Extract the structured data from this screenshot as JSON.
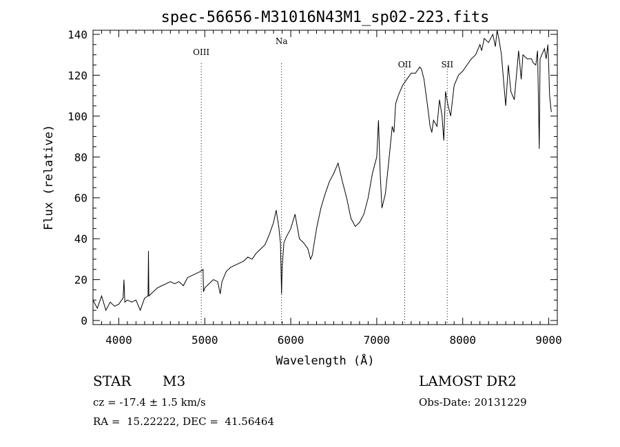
{
  "chart_data": {
    "type": "line",
    "title": "spec-56656-M31016N43M1_sp02-223.fits",
    "xlabel": "Wavelength (Å)",
    "ylabel": "Flux (relative)",
    "xlim": [
      3700,
      9100
    ],
    "ylim": [
      -2,
      142
    ],
    "xticks": [
      4000,
      5000,
      6000,
      7000,
      8000,
      9000
    ],
    "yticks": [
      0,
      20,
      40,
      60,
      80,
      100,
      120,
      140
    ],
    "grid": false,
    "line_color": "#000000",
    "lines": [
      {
        "label": "OIII",
        "x": 4959
      },
      {
        "label": "Na",
        "x": 5893
      },
      {
        "label": "OII",
        "x": 7325
      },
      {
        "label": "SII",
        "x": 7820
      }
    ],
    "series": [
      {
        "x": [
          3700,
          3750,
          3800,
          3850,
          3900,
          3950,
          4000,
          4050,
          4060,
          4070,
          4100,
          4150,
          4200,
          4250,
          4300,
          4340,
          4345,
          4350,
          4400,
          4450,
          4500,
          4550,
          4600,
          4650,
          4700,
          4750,
          4800,
          4850,
          4900,
          4950,
          4980,
          4985,
          5000,
          5050,
          5100,
          5150,
          5180,
          5200,
          5250,
          5300,
          5350,
          5400,
          5450,
          5500,
          5550,
          5600,
          5650,
          5700,
          5750,
          5800,
          5830,
          5860,
          5880,
          5893,
          5900,
          5920,
          5950,
          6000,
          6050,
          6100,
          6150,
          6200,
          6230,
          6250,
          6300,
          6350,
          6400,
          6450,
          6500,
          6550,
          6600,
          6650,
          6700,
          6750,
          6800,
          6850,
          6900,
          6950,
          7000,
          7020,
          7040,
          7060,
          7100,
          7140,
          7180,
          7200,
          7220,
          7250,
          7300,
          7350,
          7400,
          7450,
          7500,
          7520,
          7550,
          7600,
          7620,
          7640,
          7660,
          7700,
          7730,
          7760,
          7780,
          7800,
          7830,
          7860,
          7900,
          7950,
          8000,
          8050,
          8100,
          8150,
          8200,
          8220,
          8250,
          8300,
          8350,
          8380,
          8400,
          8420,
          8450,
          8480,
          8500,
          8530,
          8560,
          8600,
          8650,
          8680,
          8700,
          8750,
          8800,
          8820,
          8850,
          8870,
          8880,
          8890,
          8900,
          8920,
          8950,
          8970,
          8990,
          9000,
          9010,
          9030
        ],
        "values": [
          10,
          6,
          12,
          5,
          9,
          7,
          8,
          11,
          20,
          9,
          10,
          9,
          10,
          5,
          11,
          12,
          34,
          12,
          14,
          16,
          17,
          18,
          19,
          18,
          19,
          17,
          21,
          22,
          23,
          24,
          25,
          14,
          16,
          18,
          20,
          19,
          13,
          19,
          24,
          26,
          27,
          28,
          29,
          31,
          30,
          33,
          35,
          37,
          42,
          48,
          54,
          46,
          38,
          13,
          26,
          38,
          41,
          45,
          52,
          40,
          38,
          35,
          30,
          32,
          45,
          55,
          62,
          68,
          72,
          77,
          68,
          60,
          50,
          46,
          48,
          52,
          60,
          72,
          80,
          98,
          72,
          55,
          62,
          78,
          95,
          92,
          106,
          110,
          115,
          118,
          121,
          121,
          124,
          123,
          118,
          102,
          95,
          92,
          98,
          95,
          108,
          100,
          88,
          112,
          105,
          100,
          115,
          120,
          122,
          125,
          128,
          130,
          135,
          132,
          138,
          136,
          140,
          134,
          142,
          138,
          130,
          115,
          105,
          125,
          112,
          108,
          132,
          118,
          130,
          128,
          128,
          126,
          125,
          132,
          110,
          84,
          128,
          130,
          133,
          128,
          135,
          125,
          110,
          102
        ]
      }
    ]
  },
  "info": {
    "object_type": "STAR",
    "subclass": "M3",
    "survey": "LAMOST DR2",
    "cz": "cz = -17.4 ± 1.5 km/s",
    "obs_date": "Obs-Date: 20131229",
    "coords": "RA =  15.22222, DEC =  41.56464"
  }
}
